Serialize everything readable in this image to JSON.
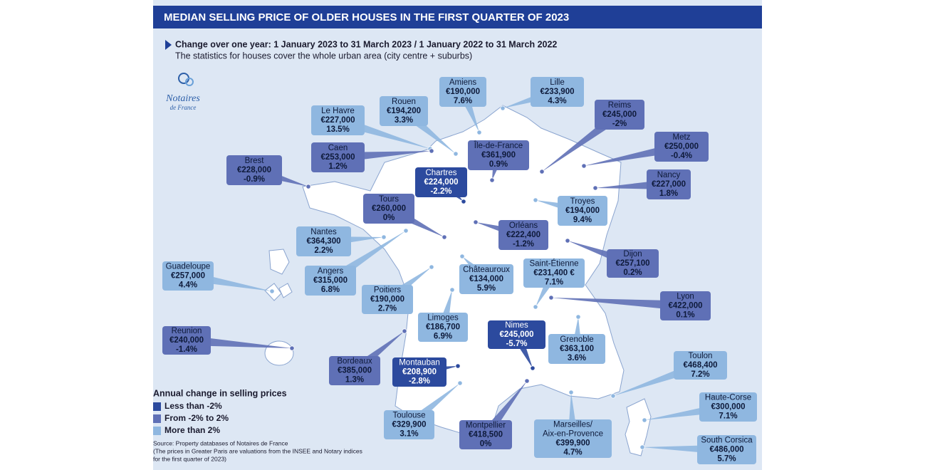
{
  "title": "MEDIAN SELLING PRICE OF OLDER HOUSES IN THE FIRST QUARTER OF 2023",
  "subtitle": "Change over one year: 1 January 2023 to 31 March 2023 / 1 January 2022 to 31 March 2022",
  "note": "The statistics for houses cover the whole urban area (city centre + suburbs)",
  "logo": {
    "line1": "Notaires",
    "line2": "de France"
  },
  "legend": {
    "title": "Annual change in selling prices",
    "items": [
      {
        "label": "Less than -2%",
        "color": "#2c4a9e"
      },
      {
        "label": "From -2% to 2%",
        "color": "#5f70b6"
      },
      {
        "label": "More than 2%",
        "color": "#8fb7e0"
      }
    ]
  },
  "source": [
    "Source: Property databases of Notaires de France",
    "(The prices in Greater Paris are valuations from the INSEE and Notary indices",
    "for the first quarter of 2023)"
  ],
  "cities": [
    {
      "name": "Amiens",
      "price": "€190,000",
      "change": "7.6%",
      "color": "#8fb7e0"
    },
    {
      "name": "Lille",
      "price": "€233,900",
      "change": "4.3%",
      "color": "#8fb7e0"
    },
    {
      "name": "Rouen",
      "price": "€194,200",
      "change": "3.3%",
      "color": "#8fb7e0"
    },
    {
      "name": "Le Havre",
      "price": "€227,000",
      "change": "13.5%",
      "color": "#8fb7e0"
    },
    {
      "name": "Reims",
      "price": "€245,000",
      "change": "-2%",
      "color": "#5f70b6"
    },
    {
      "name": "Metz",
      "price": "€250,000",
      "change": "-0.4%",
      "color": "#5f70b6"
    },
    {
      "name": "Brest",
      "price": "€228,000",
      "change": "-0.9%",
      "color": "#5f70b6"
    },
    {
      "name": "Caen",
      "price": "€253,000",
      "change": "1.2%",
      "color": "#5f70b6"
    },
    {
      "name": "Île-de-France",
      "price": "€361,900",
      "change": "0.9%",
      "color": "#5f70b6"
    },
    {
      "name": "Chartres",
      "price": "€224,000",
      "change": "-2.2%",
      "color": "#2c4a9e"
    },
    {
      "name": "Nancy",
      "price": "€227,000",
      "change": "1.8%",
      "color": "#5f70b6"
    },
    {
      "name": "Tours",
      "price": "€260,000",
      "change": "0%",
      "color": "#5f70b6"
    },
    {
      "name": "Troyes",
      "price": "€194,000",
      "change": "9.4%",
      "color": "#8fb7e0"
    },
    {
      "name": "Orléans",
      "price": "€222,400",
      "change": "-1.2%",
      "color": "#5f70b6"
    },
    {
      "name": "Nantes",
      "price": "€364,300",
      "change": "2.2%",
      "color": "#8fb7e0"
    },
    {
      "name": "Dijon",
      "price": "€257,100",
      "change": "0.2%",
      "color": "#5f70b6"
    },
    {
      "name": "Angers",
      "price": "€315,000",
      "change": "6.8%",
      "color": "#8fb7e0"
    },
    {
      "name": "Guadeloupe",
      "price": "€257,000",
      "change": "4.4%",
      "color": "#8fb7e0"
    },
    {
      "name": "Châteauroux",
      "price": "€134,000",
      "change": "5.9%",
      "color": "#8fb7e0"
    },
    {
      "name": "Saint-Étienne",
      "price": "€231,400 €",
      "change": "7.1%",
      "color": "#8fb7e0"
    },
    {
      "name": "Poitiers",
      "price": "€190,000",
      "change": "2.7%",
      "color": "#8fb7e0"
    },
    {
      "name": "Lyon",
      "price": "€422,000",
      "change": "0.1%",
      "color": "#5f70b6"
    },
    {
      "name": "Limoges",
      "price": "€186,700",
      "change": "6.9%",
      "color": "#8fb7e0"
    },
    {
      "name": "Nimes",
      "price": "€245,000",
      "change": "-5.7%",
      "color": "#2c4a9e"
    },
    {
      "name": "Reunion",
      "price": "€240,000",
      "change": "-1.4%",
      "color": "#5f70b6"
    },
    {
      "name": "Grenoble",
      "price": "€363,100",
      "change": "3.6%",
      "color": "#8fb7e0"
    },
    {
      "name": "Toulon",
      "price": "€468,400",
      "change": "7.2%",
      "color": "#8fb7e0"
    },
    {
      "name": "Bordeaux",
      "price": "€385,000",
      "change": "1.3%",
      "color": "#5f70b6"
    },
    {
      "name": "Montauban",
      "price": "€208,900",
      "change": "-2.8%",
      "color": "#2c4a9e"
    },
    {
      "name": "Haute-Corse",
      "price": "€300,000",
      "change": "7.1%",
      "color": "#8fb7e0"
    },
    {
      "name": "Toulouse",
      "price": "€329,900",
      "change": "3.1%",
      "color": "#8fb7e0"
    },
    {
      "name": "Montpellier",
      "price": "€418,500",
      "change": "0%",
      "color": "#5f70b6"
    },
    {
      "name": [
        "Marseilles/",
        "Aix-en-Provence"
      ],
      "price": "€399,900",
      "change": "4.7%",
      "color": "#8fb7e0"
    },
    {
      "name": "South Corsica",
      "price": "€486,000",
      "change": "5.7%",
      "color": "#8fb7e0"
    }
  ]
}
